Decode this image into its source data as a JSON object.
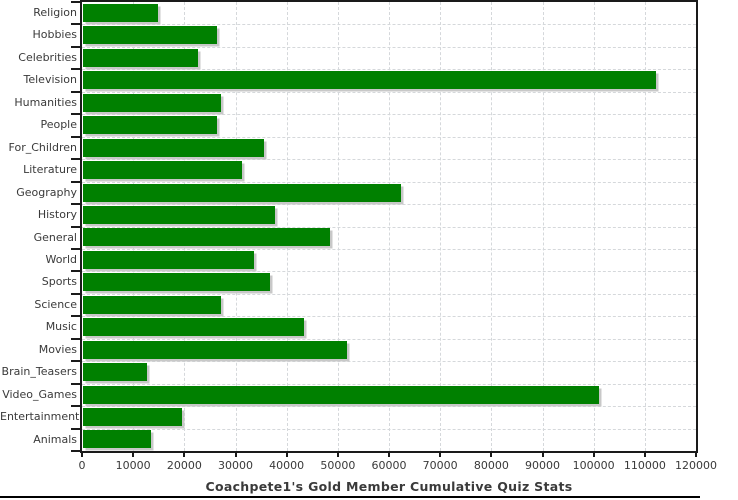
{
  "chart_data": {
    "type": "bar",
    "orientation": "horizontal",
    "title": "Coachpete1's Gold Member Cumulative Quiz Stats",
    "categories": [
      "Religion",
      "Hobbies",
      "Celebrities",
      "Television",
      "Humanities",
      "People",
      "For_Children",
      "Literature",
      "Geography",
      "History",
      "General",
      "World",
      "Sports",
      "Science",
      "Music",
      "Movies",
      "Brain_Teasers",
      "Video_Games",
      "Entertainment",
      "Animals"
    ],
    "values": [
      14600,
      26200,
      22500,
      112000,
      26900,
      26100,
      35400,
      31100,
      62100,
      37500,
      48200,
      33400,
      36600,
      27000,
      43200,
      51600,
      12600,
      100800,
      19300,
      13300
    ],
    "xlabel": "",
    "ylabel": "",
    "xlim": [
      0,
      120000
    ],
    "x_tick_interval": 10000,
    "x_tick_labels": [
      "0",
      "10000",
      "20000",
      "30000",
      "40000",
      "50000",
      "60000",
      "70000",
      "80000",
      "90000",
      "100000",
      "110000",
      "120000"
    ],
    "grid": "dashed",
    "legend_position": "none",
    "colors": {
      "bar": "#008000",
      "bar_shadow": "#c8c8c8",
      "gridline": "#d5d8db",
      "frame": "#1a1a1a",
      "text": "#3a3a3a",
      "background": "#ffffff",
      "bottom_border": "#000000"
    }
  }
}
